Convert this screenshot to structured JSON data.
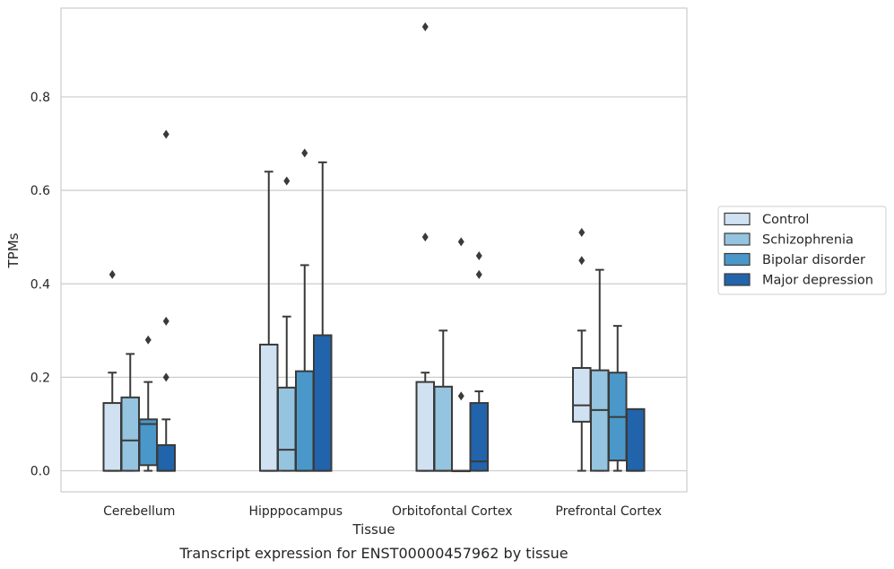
{
  "caption": "Transcript expression for ENST00000457962 by tissue",
  "chart_data": {
    "type": "box",
    "xlabel": "Tissue",
    "ylabel": "TPMs",
    "ylim": [
      -0.045,
      0.99
    ],
    "yticks": [
      0.0,
      0.2,
      0.4,
      0.6,
      0.8
    ],
    "ytick_labels": [
      "0.0",
      "0.2",
      "0.4",
      "0.6",
      "0.8"
    ],
    "grid": "horizontal",
    "legend_position": "right",
    "categories": [
      "Cerebellum",
      "Hipppocampus",
      "Orbitofontal Cortex",
      "Prefrontal Cortex"
    ],
    "series": [
      {
        "name": "Control",
        "color": "#d0e1f2",
        "boxes": [
          {
            "whisker_low": 0.0,
            "q1": 0.0,
            "median": 0.0,
            "q3": 0.145,
            "whisker_high": 0.21,
            "outliers": [
              0.42
            ]
          },
          {
            "whisker_low": 0.0,
            "q1": 0.0,
            "median": 0.0,
            "q3": 0.27,
            "whisker_high": 0.64,
            "outliers": []
          },
          {
            "whisker_low": 0.0,
            "q1": 0.0,
            "median": 0.0,
            "q3": 0.19,
            "whisker_high": 0.21,
            "outliers": [
              0.5,
              0.95
            ]
          },
          {
            "whisker_low": 0.0,
            "q1": 0.105,
            "median": 0.14,
            "q3": 0.22,
            "whisker_high": 0.3,
            "outliers": [
              0.45,
              0.51
            ]
          }
        ]
      },
      {
        "name": "Schizophrenia",
        "color": "#94c4df",
        "boxes": [
          {
            "whisker_low": 0.0,
            "q1": 0.0,
            "median": 0.065,
            "q3": 0.157,
            "whisker_high": 0.25,
            "outliers": []
          },
          {
            "whisker_low": 0.0,
            "q1": 0.0,
            "median": 0.045,
            "q3": 0.178,
            "whisker_high": 0.33,
            "outliers": [
              0.62
            ]
          },
          {
            "whisker_low": 0.0,
            "q1": 0.0,
            "median": 0.0,
            "q3": 0.18,
            "whisker_high": 0.3,
            "outliers": []
          },
          {
            "whisker_low": 0.0,
            "q1": 0.0,
            "median": 0.13,
            "q3": 0.215,
            "whisker_high": 0.43,
            "outliers": []
          }
        ]
      },
      {
        "name": "Bipolar disorder",
        "color": "#4a98c9",
        "boxes": [
          {
            "whisker_low": 0.0,
            "q1": 0.012,
            "median": 0.1,
            "q3": 0.11,
            "whisker_high": 0.19,
            "outliers": [
              0.28
            ]
          },
          {
            "whisker_low": 0.0,
            "q1": 0.0,
            "median": 0.0,
            "q3": 0.213,
            "whisker_high": 0.44,
            "outliers": [
              0.68
            ]
          },
          {
            "whisker_low": 0.0,
            "q1": 0.0,
            "median": 0.0,
            "q3": 0.0,
            "whisker_high": 0.0,
            "outliers": [
              0.16,
              0.49
            ]
          },
          {
            "whisker_low": 0.0,
            "q1": 0.022,
            "median": 0.115,
            "q3": 0.21,
            "whisker_high": 0.31,
            "outliers": []
          }
        ]
      },
      {
        "name": "Major depression",
        "color": "#2164ab",
        "boxes": [
          {
            "whisker_low": 0.0,
            "q1": 0.0,
            "median": 0.0,
            "q3": 0.055,
            "whisker_high": 0.11,
            "outliers": [
              0.2,
              0.32,
              0.72
            ]
          },
          {
            "whisker_low": 0.0,
            "q1": 0.0,
            "median": 0.0,
            "q3": 0.29,
            "whisker_high": 0.66,
            "outliers": []
          },
          {
            "whisker_low": 0.0,
            "q1": 0.0,
            "median": 0.02,
            "q3": 0.145,
            "whisker_high": 0.17,
            "outliers": [
              0.42,
              0.46
            ]
          },
          {
            "whisker_low": 0.0,
            "q1": 0.0,
            "median": 0.0,
            "q3": 0.132,
            "whisker_high": 0.132,
            "outliers": []
          }
        ]
      }
    ]
  }
}
